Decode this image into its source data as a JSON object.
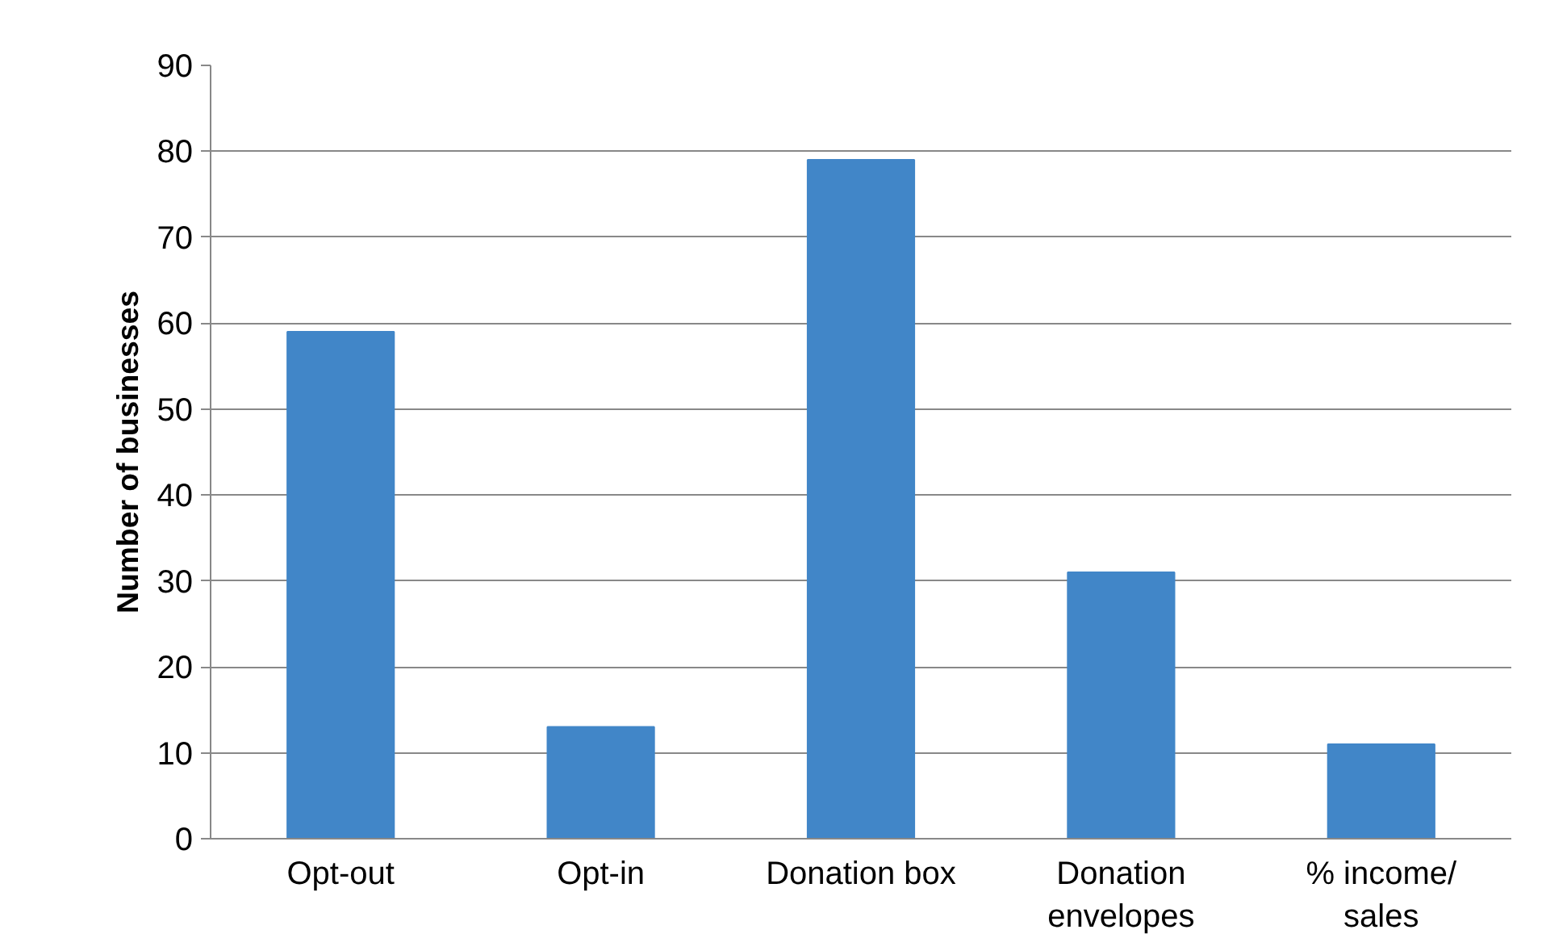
{
  "chart_data": {
    "type": "bar",
    "ylabel": "Number of businesses",
    "categories": [
      "Opt-out",
      "Opt-in",
      "Donation box",
      "Donation\nenvelopes",
      "% income/\nsales"
    ],
    "values": [
      59,
      13,
      79,
      31,
      11
    ],
    "color": "#4186c8",
    "ylim": [
      0,
      90
    ],
    "yticks": [
      0,
      10,
      20,
      30,
      40,
      50,
      60,
      70,
      80,
      90
    ],
    "grid": "y"
  }
}
